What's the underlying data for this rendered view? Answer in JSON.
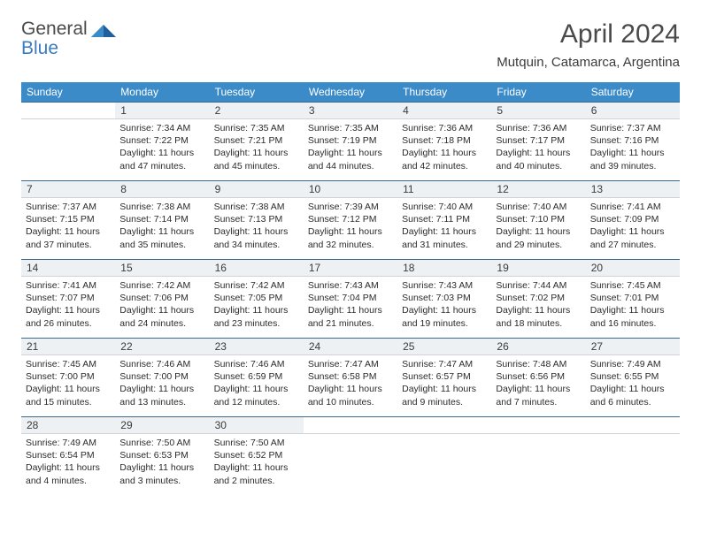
{
  "brand": {
    "word1": "General",
    "word2": "Blue"
  },
  "title": "April 2024",
  "subtitle": "Mutquin, Catamarca, Argentina",
  "colors": {
    "header_bg": "#3b8bc9",
    "header_text": "#ffffff",
    "daynum_bg": "#eef1f3",
    "daynum_border_top": "#3b6a8e",
    "body_text": "#2b2b2b",
    "logo_blue": "#3b7bbf",
    "logo_gray": "#4a4a4a"
  },
  "weekdays": [
    "Sunday",
    "Monday",
    "Tuesday",
    "Wednesday",
    "Thursday",
    "Friday",
    "Saturday"
  ],
  "weeks": [
    {
      "nums": [
        "",
        "1",
        "2",
        "3",
        "4",
        "5",
        "6"
      ],
      "details": [
        null,
        {
          "sunrise": "Sunrise: 7:34 AM",
          "sunset": "Sunset: 7:22 PM",
          "day1": "Daylight: 11 hours",
          "day2": "and 47 minutes."
        },
        {
          "sunrise": "Sunrise: 7:35 AM",
          "sunset": "Sunset: 7:21 PM",
          "day1": "Daylight: 11 hours",
          "day2": "and 45 minutes."
        },
        {
          "sunrise": "Sunrise: 7:35 AM",
          "sunset": "Sunset: 7:19 PM",
          "day1": "Daylight: 11 hours",
          "day2": "and 44 minutes."
        },
        {
          "sunrise": "Sunrise: 7:36 AM",
          "sunset": "Sunset: 7:18 PM",
          "day1": "Daylight: 11 hours",
          "day2": "and 42 minutes."
        },
        {
          "sunrise": "Sunrise: 7:36 AM",
          "sunset": "Sunset: 7:17 PM",
          "day1": "Daylight: 11 hours",
          "day2": "and 40 minutes."
        },
        {
          "sunrise": "Sunrise: 7:37 AM",
          "sunset": "Sunset: 7:16 PM",
          "day1": "Daylight: 11 hours",
          "day2": "and 39 minutes."
        }
      ]
    },
    {
      "nums": [
        "7",
        "8",
        "9",
        "10",
        "11",
        "12",
        "13"
      ],
      "details": [
        {
          "sunrise": "Sunrise: 7:37 AM",
          "sunset": "Sunset: 7:15 PM",
          "day1": "Daylight: 11 hours",
          "day2": "and 37 minutes."
        },
        {
          "sunrise": "Sunrise: 7:38 AM",
          "sunset": "Sunset: 7:14 PM",
          "day1": "Daylight: 11 hours",
          "day2": "and 35 minutes."
        },
        {
          "sunrise": "Sunrise: 7:38 AM",
          "sunset": "Sunset: 7:13 PM",
          "day1": "Daylight: 11 hours",
          "day2": "and 34 minutes."
        },
        {
          "sunrise": "Sunrise: 7:39 AM",
          "sunset": "Sunset: 7:12 PM",
          "day1": "Daylight: 11 hours",
          "day2": "and 32 minutes."
        },
        {
          "sunrise": "Sunrise: 7:40 AM",
          "sunset": "Sunset: 7:11 PM",
          "day1": "Daylight: 11 hours",
          "day2": "and 31 minutes."
        },
        {
          "sunrise": "Sunrise: 7:40 AM",
          "sunset": "Sunset: 7:10 PM",
          "day1": "Daylight: 11 hours",
          "day2": "and 29 minutes."
        },
        {
          "sunrise": "Sunrise: 7:41 AM",
          "sunset": "Sunset: 7:09 PM",
          "day1": "Daylight: 11 hours",
          "day2": "and 27 minutes."
        }
      ]
    },
    {
      "nums": [
        "14",
        "15",
        "16",
        "17",
        "18",
        "19",
        "20"
      ],
      "details": [
        {
          "sunrise": "Sunrise: 7:41 AM",
          "sunset": "Sunset: 7:07 PM",
          "day1": "Daylight: 11 hours",
          "day2": "and 26 minutes."
        },
        {
          "sunrise": "Sunrise: 7:42 AM",
          "sunset": "Sunset: 7:06 PM",
          "day1": "Daylight: 11 hours",
          "day2": "and 24 minutes."
        },
        {
          "sunrise": "Sunrise: 7:42 AM",
          "sunset": "Sunset: 7:05 PM",
          "day1": "Daylight: 11 hours",
          "day2": "and 23 minutes."
        },
        {
          "sunrise": "Sunrise: 7:43 AM",
          "sunset": "Sunset: 7:04 PM",
          "day1": "Daylight: 11 hours",
          "day2": "and 21 minutes."
        },
        {
          "sunrise": "Sunrise: 7:43 AM",
          "sunset": "Sunset: 7:03 PM",
          "day1": "Daylight: 11 hours",
          "day2": "and 19 minutes."
        },
        {
          "sunrise": "Sunrise: 7:44 AM",
          "sunset": "Sunset: 7:02 PM",
          "day1": "Daylight: 11 hours",
          "day2": "and 18 minutes."
        },
        {
          "sunrise": "Sunrise: 7:45 AM",
          "sunset": "Sunset: 7:01 PM",
          "day1": "Daylight: 11 hours",
          "day2": "and 16 minutes."
        }
      ]
    },
    {
      "nums": [
        "21",
        "22",
        "23",
        "24",
        "25",
        "26",
        "27"
      ],
      "details": [
        {
          "sunrise": "Sunrise: 7:45 AM",
          "sunset": "Sunset: 7:00 PM",
          "day1": "Daylight: 11 hours",
          "day2": "and 15 minutes."
        },
        {
          "sunrise": "Sunrise: 7:46 AM",
          "sunset": "Sunset: 7:00 PM",
          "day1": "Daylight: 11 hours",
          "day2": "and 13 minutes."
        },
        {
          "sunrise": "Sunrise: 7:46 AM",
          "sunset": "Sunset: 6:59 PM",
          "day1": "Daylight: 11 hours",
          "day2": "and 12 minutes."
        },
        {
          "sunrise": "Sunrise: 7:47 AM",
          "sunset": "Sunset: 6:58 PM",
          "day1": "Daylight: 11 hours",
          "day2": "and 10 minutes."
        },
        {
          "sunrise": "Sunrise: 7:47 AM",
          "sunset": "Sunset: 6:57 PM",
          "day1": "Daylight: 11 hours",
          "day2": "and 9 minutes."
        },
        {
          "sunrise": "Sunrise: 7:48 AM",
          "sunset": "Sunset: 6:56 PM",
          "day1": "Daylight: 11 hours",
          "day2": "and 7 minutes."
        },
        {
          "sunrise": "Sunrise: 7:49 AM",
          "sunset": "Sunset: 6:55 PM",
          "day1": "Daylight: 11 hours",
          "day2": "and 6 minutes."
        }
      ]
    },
    {
      "nums": [
        "28",
        "29",
        "30",
        "",
        "",
        "",
        ""
      ],
      "details": [
        {
          "sunrise": "Sunrise: 7:49 AM",
          "sunset": "Sunset: 6:54 PM",
          "day1": "Daylight: 11 hours",
          "day2": "and 4 minutes."
        },
        {
          "sunrise": "Sunrise: 7:50 AM",
          "sunset": "Sunset: 6:53 PM",
          "day1": "Daylight: 11 hours",
          "day2": "and 3 minutes."
        },
        {
          "sunrise": "Sunrise: 7:50 AM",
          "sunset": "Sunset: 6:52 PM",
          "day1": "Daylight: 11 hours",
          "day2": "and 2 minutes."
        },
        null,
        null,
        null,
        null
      ]
    }
  ]
}
